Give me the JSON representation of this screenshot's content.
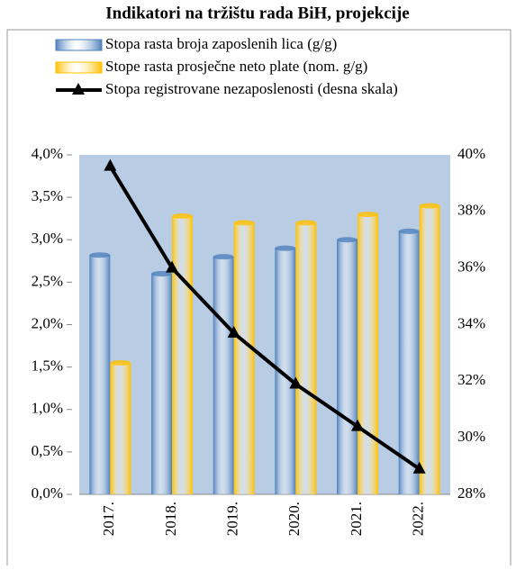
{
  "chart_data": {
    "type": "bar",
    "title": "Indikatori na tržištu rada BiH, projekcije",
    "categories": [
      "2017.",
      "2018.",
      "2019.",
      "2020.",
      "2021.",
      "2022."
    ],
    "series": [
      {
        "name": "Stopa rasta broja zaposlenih lica (g/g)",
        "color": "#4f81bd",
        "values": [
          2.82,
          2.6,
          2.8,
          2.9,
          3.0,
          3.1
        ]
      },
      {
        "name": "Stope rasta prosječne neto plate (nom. g/g)",
        "color": "#ffc000",
        "values": [
          1.55,
          3.28,
          3.2,
          3.2,
          3.3,
          3.4
        ]
      },
      {
        "name": "Stopa registrovane nezaposlenosti (desna skala)",
        "color": "#000000",
        "type": "line",
        "axis": "y2",
        "values": [
          39.6,
          36.0,
          33.7,
          31.9,
          30.4,
          28.9
        ]
      }
    ],
    "ylim": [
      0,
      4
    ],
    "yticks": [
      {
        "value": 0,
        "label": "0,0%"
      },
      {
        "value": 0.5,
        "label": "0,5%"
      },
      {
        "value": 1,
        "label": "1,0%"
      },
      {
        "value": 1.5,
        "label": "1,5%"
      },
      {
        "value": 2,
        "label": "2,0%"
      },
      {
        "value": 2.5,
        "label": "2,5%"
      },
      {
        "value": 3,
        "label": "3,0%"
      },
      {
        "value": 3.5,
        "label": "3,5%"
      },
      {
        "value": 4,
        "label": "4,0%"
      }
    ],
    "y2lim": [
      28,
      40
    ],
    "y2ticks": [
      {
        "value": 28,
        "label": "28%"
      },
      {
        "value": 30,
        "label": "30%"
      },
      {
        "value": 32,
        "label": "32%"
      },
      {
        "value": 34,
        "label": "34%"
      },
      {
        "value": 36,
        "label": "36%"
      },
      {
        "value": 38,
        "label": "38%"
      },
      {
        "value": 40,
        "label": "40%"
      }
    ],
    "plot_background": "#b8cce4"
  }
}
